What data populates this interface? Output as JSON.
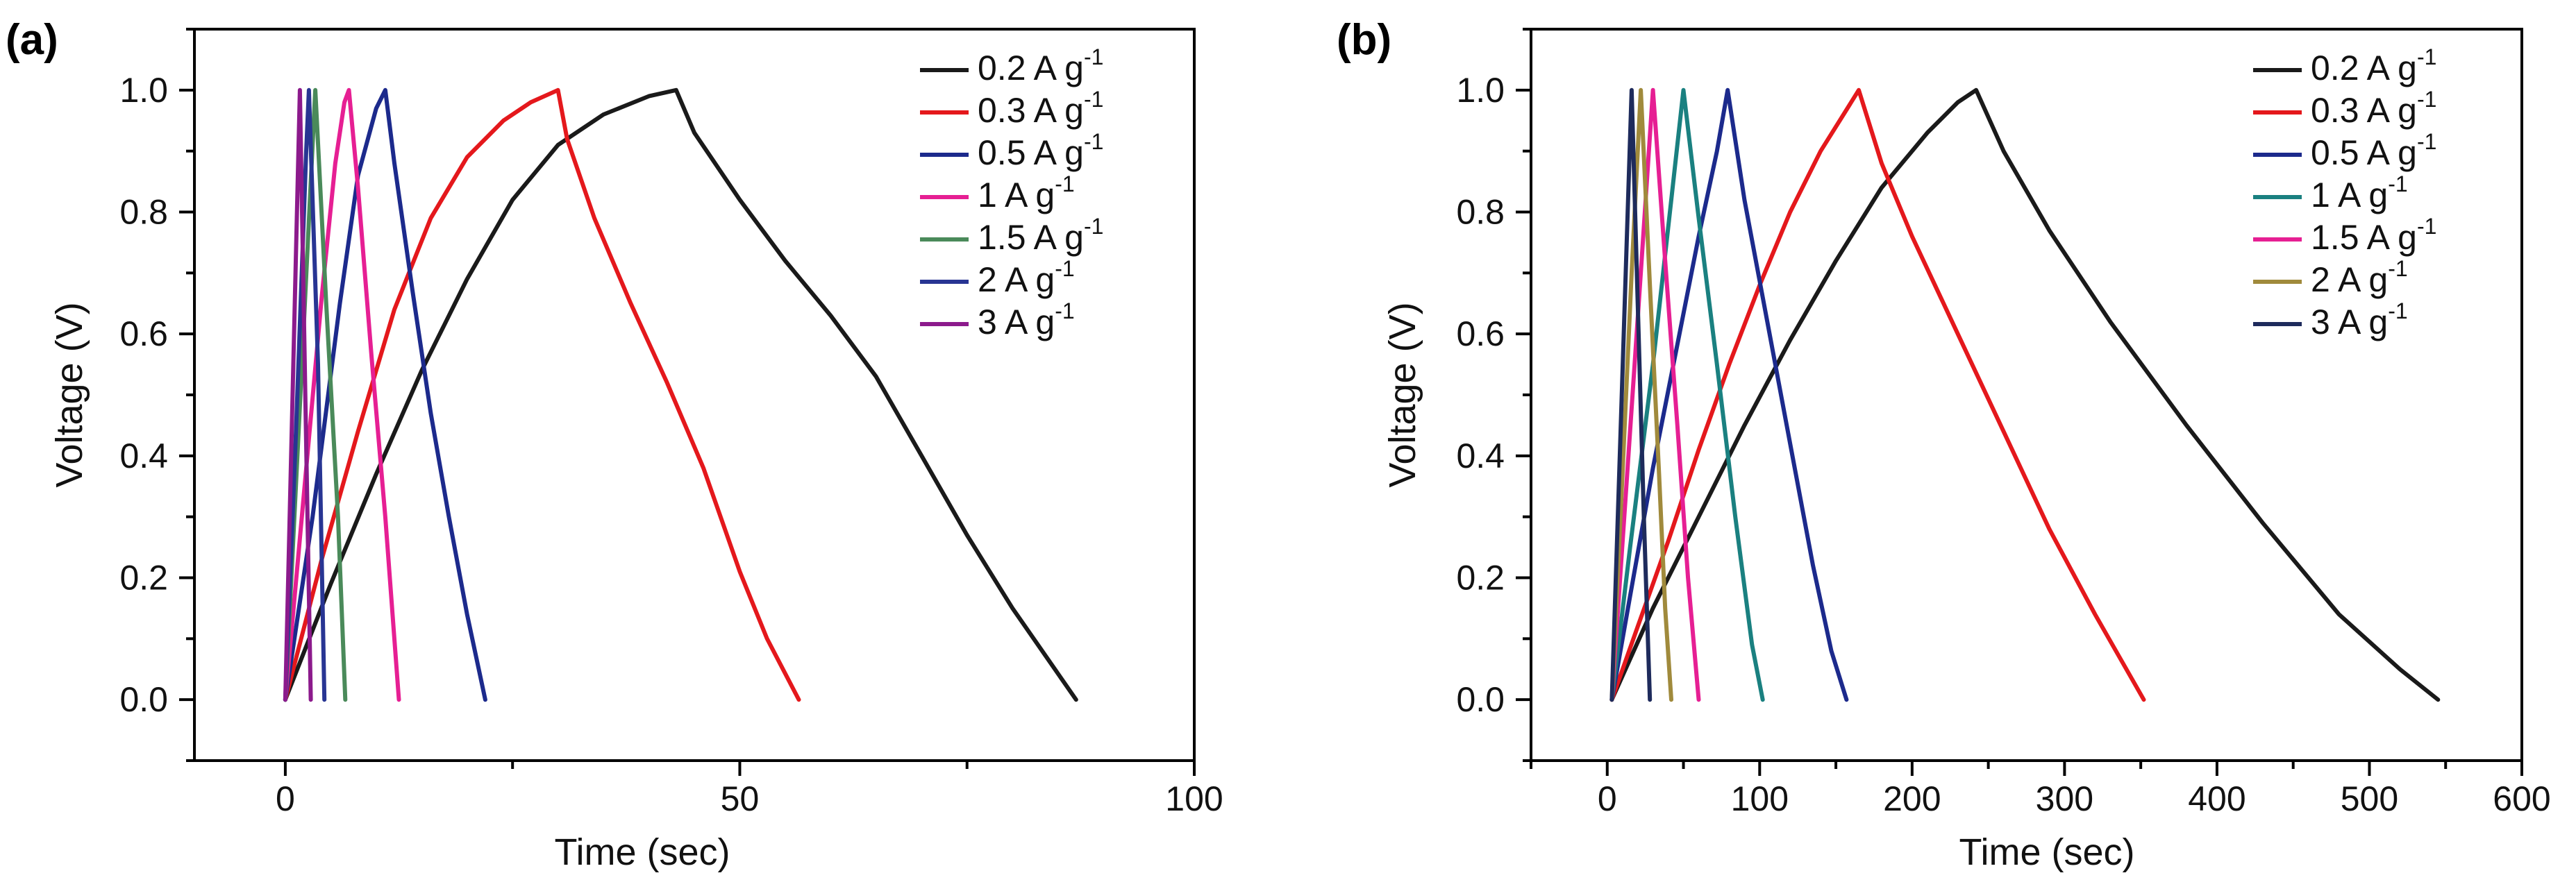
{
  "chart_data": [
    {
      "type": "line",
      "panel_label": "(a)",
      "xlabel": "Time (sec)",
      "ylabel": "Voltage (V)",
      "xlim": [
        -10,
        100
      ],
      "ylim": [
        -0.1,
        1.1
      ],
      "xticks": [
        0,
        50,
        100
      ],
      "xtick_labels": [
        "0",
        "50",
        "100"
      ],
      "yticks": [
        0.0,
        0.2,
        0.4,
        0.6,
        0.8,
        1.0
      ],
      "ytick_labels": [
        "0.0",
        "0.2",
        "0.4",
        "0.6",
        "0.8",
        "1.0"
      ],
      "legend_position": "top-right",
      "series": [
        {
          "name": "0.2 A g",
          "sup": "-1",
          "color": "#1a1a1a",
          "x": [
            0,
            5,
            10,
            15,
            20,
            25,
            30,
            35,
            40,
            43,
            45,
            50,
            55,
            60,
            65,
            70,
            75,
            80,
            87
          ],
          "y": [
            0.0,
            0.19,
            0.37,
            0.54,
            0.69,
            0.82,
            0.91,
            0.96,
            0.99,
            1.0,
            0.93,
            0.82,
            0.72,
            0.63,
            0.53,
            0.4,
            0.27,
            0.15,
            0.0
          ]
        },
        {
          "name": "0.3 A g",
          "sup": "-1",
          "color": "#e4181c",
          "x": [
            0,
            4,
            8,
            12,
            16,
            20,
            24,
            27,
            30,
            31,
            34,
            38,
            42,
            46,
            50,
            53,
            56.5
          ],
          "y": [
            0.0,
            0.23,
            0.44,
            0.64,
            0.79,
            0.89,
            0.95,
            0.98,
            1.0,
            0.92,
            0.79,
            0.65,
            0.52,
            0.38,
            0.21,
            0.1,
            0.0
          ]
        },
        {
          "name": "0.5 A g",
          "sup": "-1",
          "color": "#1c2a8c",
          "x": [
            0,
            3,
            6,
            8,
            10,
            11,
            12,
            14,
            16,
            18,
            20,
            22
          ],
          "y": [
            0.0,
            0.3,
            0.65,
            0.86,
            0.97,
            1.0,
            0.88,
            0.67,
            0.47,
            0.3,
            0.14,
            0.0
          ]
        },
        {
          "name": "1 A g",
          "sup": "-1",
          "color": "#e61f93",
          "x": [
            0,
            2,
            4,
            5.5,
            6.5,
            7,
            8,
            9.5,
            11,
            12.5
          ],
          "y": [
            0.0,
            0.33,
            0.66,
            0.88,
            0.98,
            1.0,
            0.84,
            0.56,
            0.3,
            0.0
          ]
        },
        {
          "name": "1.5 A g",
          "sup": "-1",
          "color": "#4a8a5a",
          "x": [
            0,
            1.5,
            3,
            3.3,
            4.5,
            5.8,
            6.6
          ],
          "y": [
            0.0,
            0.45,
            0.91,
            1.0,
            0.65,
            0.3,
            0.0
          ]
        },
        {
          "name": "2 A g",
          "sup": "-1",
          "color": "#283593",
          "x": [
            0,
            1.2,
            2.3,
            2.6,
            3.6,
            4.3
          ],
          "y": [
            0.0,
            0.45,
            0.9,
            1.0,
            0.55,
            0.0
          ]
        },
        {
          "name": "3 A g",
          "sup": "-1",
          "color": "#8c1a8c",
          "x": [
            0,
            0.8,
            1.6,
            2.2,
            2.8
          ],
          "y": [
            0.0,
            0.5,
            1.0,
            0.5,
            0.0
          ]
        }
      ]
    },
    {
      "type": "line",
      "panel_label": "(b)",
      "xlabel": "Time (sec)",
      "ylabel": "Voltage (V)",
      "xlim": [
        -50,
        600
      ],
      "ylim": [
        -0.1,
        1.1
      ],
      "xticks": [
        0,
        100,
        200,
        300,
        400,
        500,
        600
      ],
      "xtick_labels": [
        "0",
        "100",
        "200",
        "300",
        "400",
        "500",
        "600"
      ],
      "yticks": [
        0.0,
        0.2,
        0.4,
        0.6,
        0.8,
        1.0
      ],
      "ytick_labels": [
        "0.0",
        "0.2",
        "0.4",
        "0.6",
        "0.8",
        "1.0"
      ],
      "legend_position": "top-right",
      "series": [
        {
          "name": "0.2 A g",
          "sup": "-1",
          "color": "#1a1a1a",
          "x": [
            3,
            30,
            60,
            90,
            120,
            150,
            180,
            210,
            230,
            242,
            260,
            290,
            330,
            380,
            430,
            480,
            520,
            545
          ],
          "y": [
            0.0,
            0.15,
            0.3,
            0.45,
            0.59,
            0.72,
            0.84,
            0.93,
            0.98,
            1.0,
            0.9,
            0.77,
            0.62,
            0.45,
            0.29,
            0.14,
            0.05,
            0.0
          ]
        },
        {
          "name": "0.3 A g",
          "sup": "-1",
          "color": "#e4181c",
          "x": [
            3,
            20,
            40,
            60,
            80,
            100,
            120,
            140,
            155,
            165,
            180,
            200,
            230,
            260,
            290,
            320,
            352
          ],
          "y": [
            0.0,
            0.12,
            0.26,
            0.41,
            0.55,
            0.68,
            0.8,
            0.9,
            0.96,
            1.0,
            0.88,
            0.76,
            0.6,
            0.44,
            0.28,
            0.14,
            0.0
          ]
        },
        {
          "name": "0.5 A g",
          "sup": "-1",
          "color": "#1c2a8c",
          "x": [
            3,
            15,
            30,
            45,
            60,
            72,
            79,
            90,
            105,
            120,
            135,
            147,
            157
          ],
          "y": [
            0.0,
            0.17,
            0.38,
            0.57,
            0.76,
            0.9,
            1.0,
            0.82,
            0.62,
            0.42,
            0.22,
            0.08,
            0.0
          ]
        },
        {
          "name": "1 A g",
          "sup": "-1",
          "color": "#1a8080",
          "x": [
            3,
            15,
            30,
            42,
            50,
            60,
            72,
            84,
            95,
            102
          ],
          "y": [
            0.0,
            0.25,
            0.55,
            0.82,
            1.0,
            0.79,
            0.55,
            0.3,
            0.09,
            0.0
          ]
        },
        {
          "name": "1.5 A g",
          "sup": "-1",
          "color": "#e61f93",
          "x": [
            3,
            12,
            22,
            30,
            38,
            46,
            53,
            60
          ],
          "y": [
            0.0,
            0.33,
            0.7,
            1.0,
            0.72,
            0.45,
            0.2,
            0.0
          ]
        },
        {
          "name": "2 A g",
          "sup": "-1",
          "color": "#a08a3c",
          "x": [
            3,
            10,
            16,
            22,
            28,
            34,
            38,
            42
          ],
          "y": [
            0.0,
            0.37,
            0.7,
            1.0,
            0.68,
            0.37,
            0.15,
            0.0
          ]
        },
        {
          "name": "3 A g",
          "sup": "-1",
          "color": "#1e2b5c",
          "x": [
            3,
            8,
            12,
            16,
            20,
            24,
            28
          ],
          "y": [
            0.0,
            0.38,
            0.69,
            1.0,
            0.65,
            0.3,
            0.0
          ]
        }
      ]
    }
  ]
}
